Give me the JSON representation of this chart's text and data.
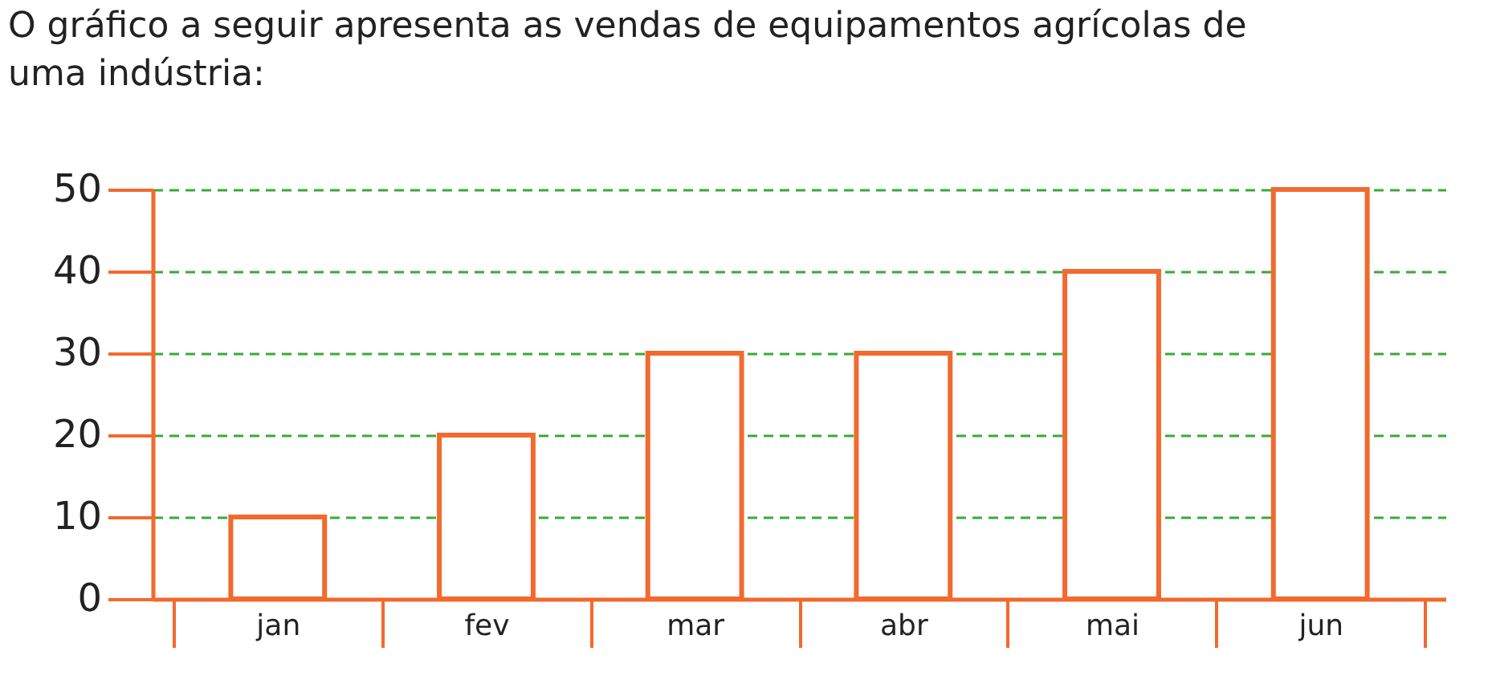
{
  "chart_data": {
    "type": "bar",
    "title": "O gráfico a seguir apresenta as vendas de equipamentos agrícolas de uma indústria:",
    "categories": [
      "jan",
      "fev",
      "mar",
      "abr",
      "mai",
      "jun"
    ],
    "values": [
      10,
      20,
      30,
      30,
      40,
      50
    ],
    "color": "#f26a2e",
    "ylim": [
      0,
      50
    ],
    "yticks": [
      0,
      10,
      20,
      30,
      40,
      50
    ],
    "grid": "y"
  }
}
